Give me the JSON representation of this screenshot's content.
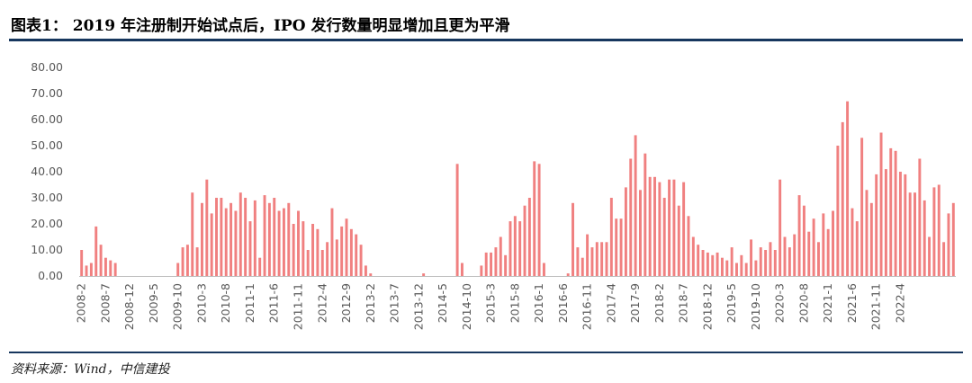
{
  "page": {
    "title": "图表1： 2019 年注册制开始试点后，IPO 发行数量明显增加且更为平滑",
    "source": "资料来源：Wind，中信建投"
  },
  "colors": {
    "bar": "#f08080",
    "axis": "#bfbfbf",
    "rule": "#17375e",
    "text": "#595959"
  },
  "chart_data": {
    "type": "bar",
    "title": "",
    "xlabel": "",
    "ylabel": "",
    "ylim": [
      0,
      80
    ],
    "yticks": [
      "0.00",
      "10.00",
      "20.00",
      "30.00",
      "40.00",
      "50.00",
      "60.00",
      "70.00",
      "80.00"
    ],
    "grid": false,
    "legend": "none",
    "xtick_labels": [
      "2008-2",
      "2008-7",
      "2008-12",
      "2009-5",
      "2009-10",
      "2010-3",
      "2010-8",
      "2011-1",
      "2011-6",
      "2011-11",
      "2012-4",
      "2012-9",
      "2013-2",
      "2013-7",
      "2013-12",
      "2014-5",
      "2014-10",
      "2015-3",
      "2015-8",
      "2016-1",
      "2016-6",
      "2016-11",
      "2017-4",
      "2017-9",
      "2018-2",
      "2018-7",
      "2018-12",
      "2019-5",
      "2019-10",
      "2020-3",
      "2020-8",
      "2021-1",
      "2021-6",
      "2021-11",
      "2022-4"
    ],
    "start_month": "2008-2",
    "values": [
      10,
      4,
      5,
      19,
      12,
      7,
      6,
      5,
      0,
      0,
      0,
      0,
      0,
      0,
      0,
      0,
      0,
      0,
      0,
      0,
      5,
      11,
      12,
      32,
      11,
      28,
      37,
      24,
      30,
      30,
      26,
      28,
      25,
      32,
      30,
      21,
      29,
      7,
      31,
      28,
      30,
      25,
      26,
      28,
      20,
      25,
      21,
      10,
      20,
      18,
      10,
      13,
      26,
      14,
      19,
      22,
      18,
      16,
      12,
      4,
      1,
      0,
      0,
      0,
      0,
      0,
      0,
      0,
      0,
      0,
      0,
      1,
      0,
      0,
      0,
      0,
      0,
      0,
      43,
      5,
      0,
      0,
      0,
      4,
      9,
      9,
      11,
      15,
      8,
      21,
      23,
      21,
      27,
      30,
      44,
      43,
      5,
      0,
      0,
      0,
      0,
      1,
      28,
      11,
      7,
      16,
      11,
      13,
      13,
      13,
      30,
      22,
      22,
      34,
      45,
      54,
      33,
      47,
      38,
      38,
      36,
      30,
      37,
      37,
      27,
      36,
      23,
      15,
      12,
      10,
      9,
      8,
      9,
      7,
      6,
      11,
      5,
      8,
      5,
      14,
      6,
      11,
      10,
      13,
      10,
      37,
      15,
      11,
      16,
      31,
      27,
      17,
      22,
      13,
      24,
      18,
      25,
      50,
      59,
      67,
      26,
      21,
      53,
      33,
      28,
      39,
      55,
      41,
      49,
      48,
      40,
      39,
      32,
      32,
      45,
      29,
      15,
      34,
      35,
      13,
      24,
      28
    ]
  }
}
